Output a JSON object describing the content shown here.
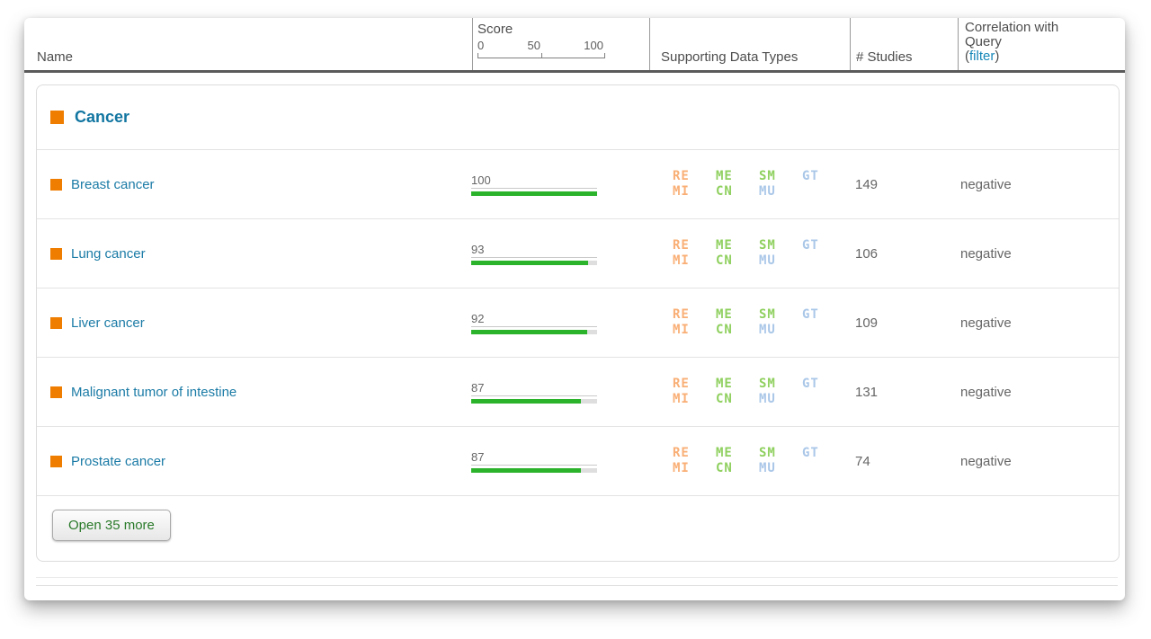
{
  "header": {
    "name_label": "Name",
    "score": {
      "label": "Score",
      "tick_0": "0",
      "tick_50": "50",
      "tick_100": "100"
    },
    "supporting_label": "Supporting Data Types",
    "studies_label": "# Studies",
    "correlation_line1": "Correlation with",
    "correlation_line2": "Query",
    "filter_open": "(",
    "filter_label": "filter",
    "filter_close": ")"
  },
  "group": {
    "label": "Cancer"
  },
  "data_type_codes": {
    "re": "RE",
    "mi": "MI",
    "me": "ME",
    "cn": "CN",
    "sm": "SM",
    "mu": "MU",
    "gt": "GT"
  },
  "rows": [
    {
      "name": "Breast cancer",
      "score": 100,
      "studies": "149",
      "correlation": "negative"
    },
    {
      "name": "Lung cancer",
      "score": 93,
      "studies": "106",
      "correlation": "negative"
    },
    {
      "name": "Liver cancer",
      "score": 92,
      "studies": "109",
      "correlation": "negative"
    },
    {
      "name": "Malignant tumor of intestine",
      "score": 87,
      "studies": "131",
      "correlation": "negative"
    },
    {
      "name": "Prostate cancer",
      "score": 87,
      "studies": "74",
      "correlation": "negative"
    }
  ],
  "footer": {
    "open_more_label": "Open 35 more"
  },
  "colors": {
    "accent_teal_link": "#1b7ba6",
    "group_title": "#1276a1",
    "orange_square": "#ee7d00",
    "score_bar_green": "#2cb32c",
    "score_bar_track": "#dedede",
    "datatype_orange": "#f9af76",
    "datatype_green": "#8fd05f",
    "datatype_blue": "#aac7e8",
    "filter_link_blue": "#1787b8",
    "button_text_green": "#2a7a2a",
    "header_rule_gray": "#5a5a5b"
  }
}
